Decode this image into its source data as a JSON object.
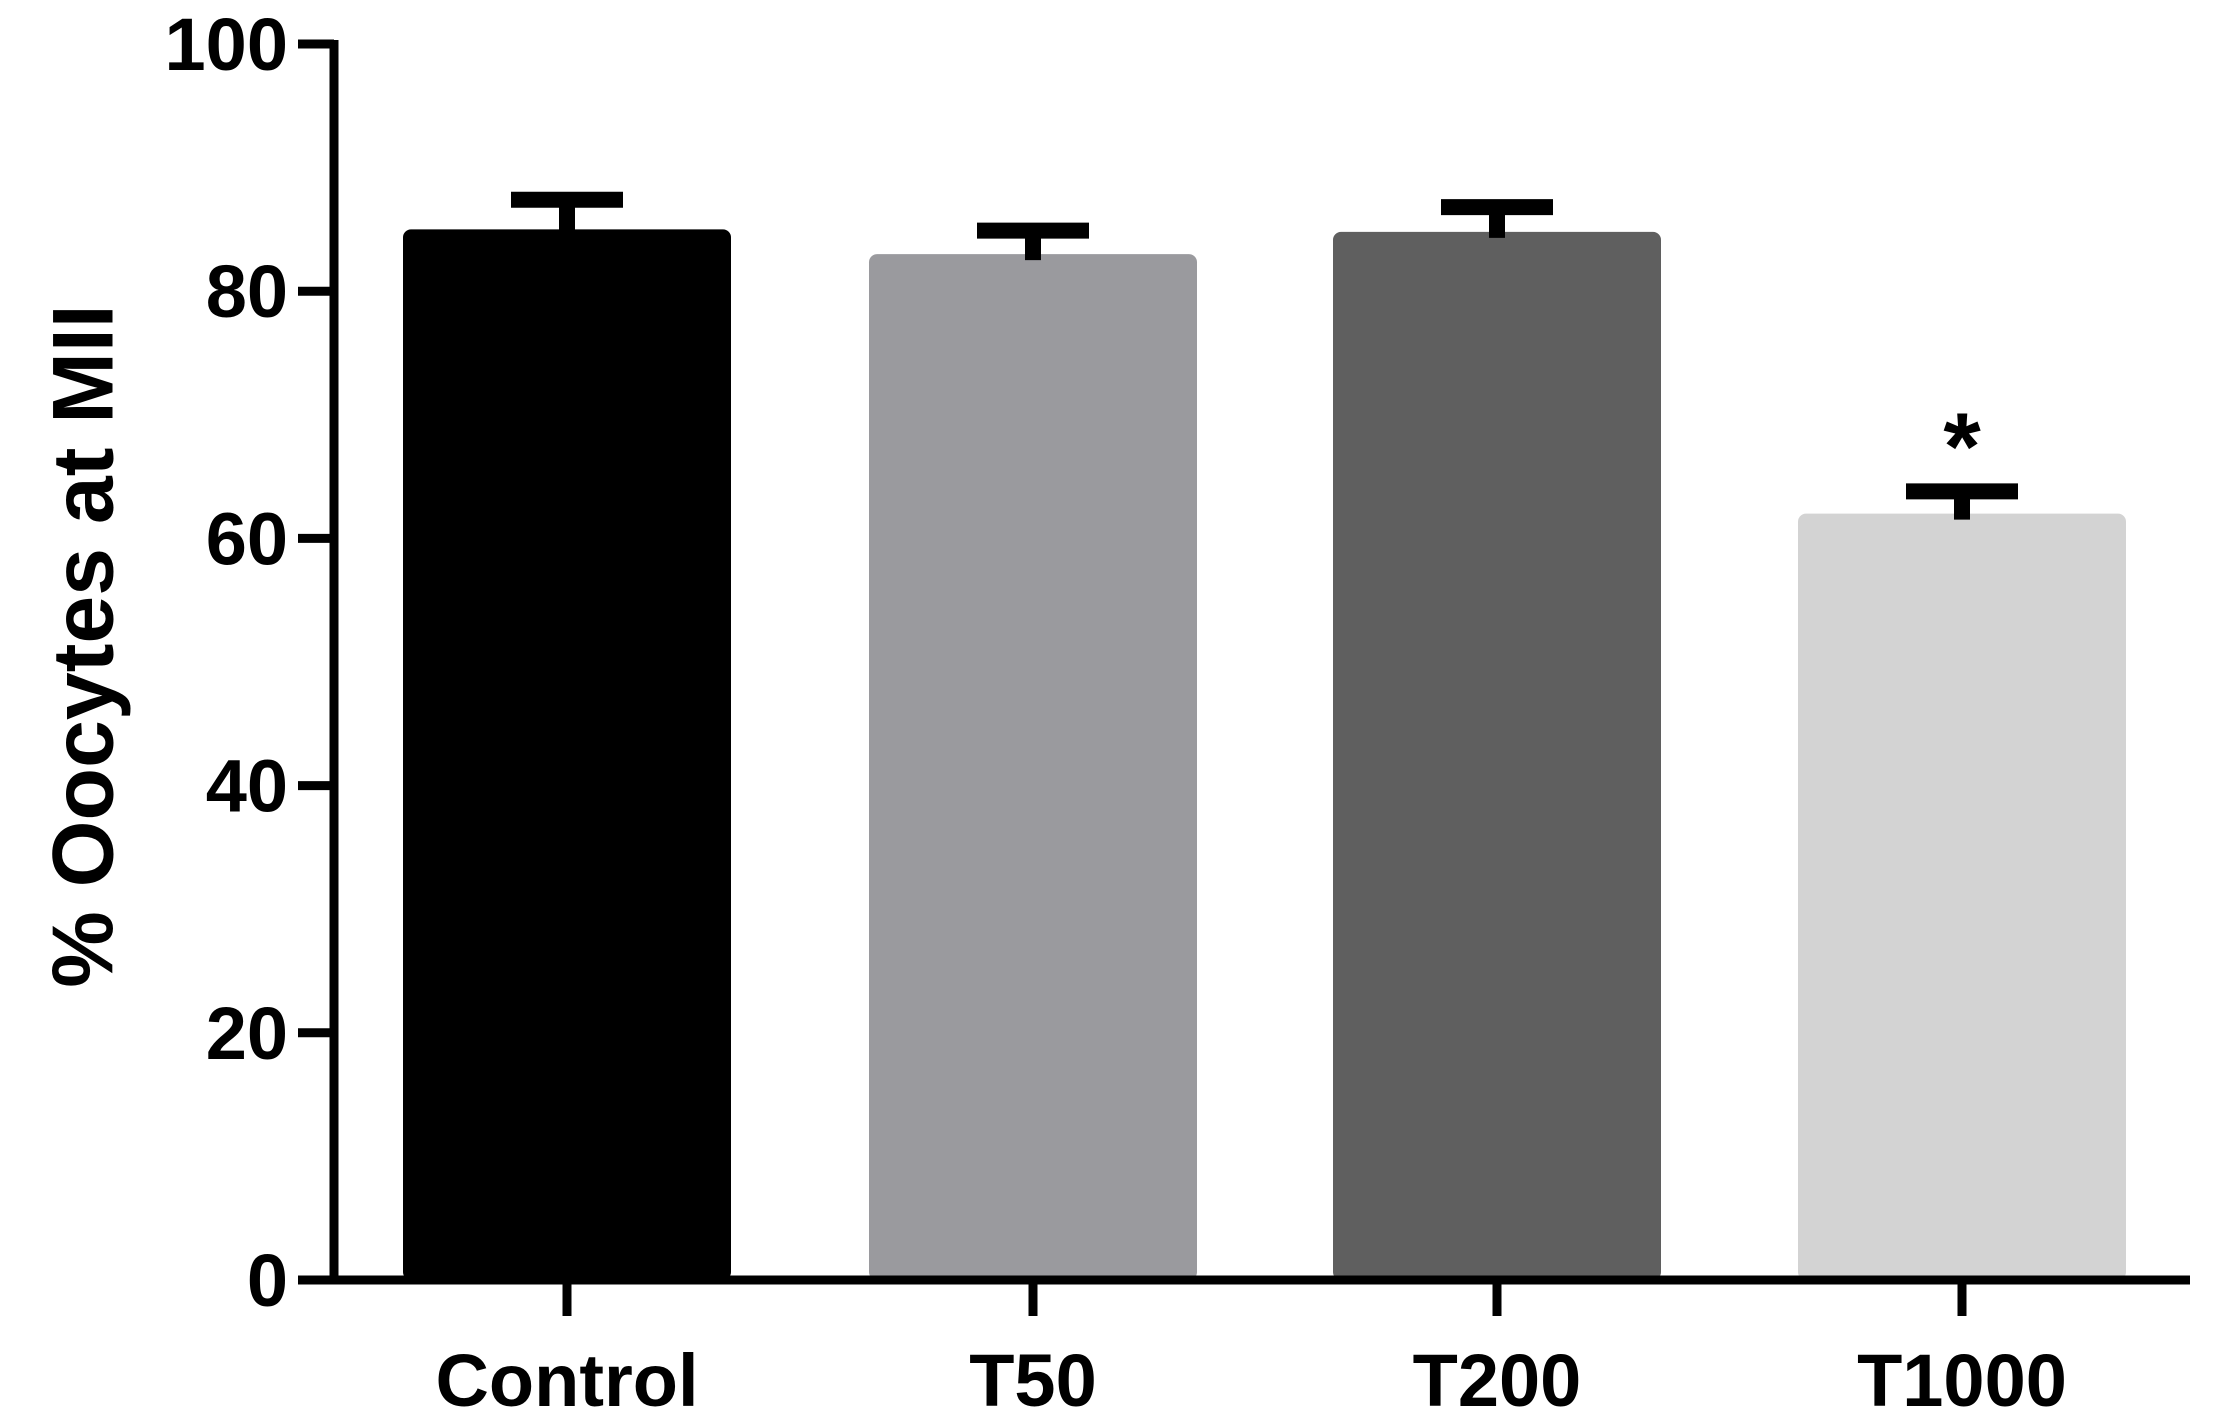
{
  "chart_data": {
    "type": "bar",
    "categories": [
      "Control",
      "T50",
      "T200",
      "T1000"
    ],
    "values": [
      85,
      83,
      84.8,
      62
    ],
    "errors": [
      2.4,
      1.9,
      2.0,
      1.8
    ],
    "colors": [
      "#000000",
      "#9a9a9e",
      "#5f5f5f",
      "#d3d3d3"
    ],
    "annotations": [
      "",
      "",
      "",
      "*"
    ],
    "title": "",
    "xlabel": "",
    "ylabel": "% Oocytes at MII",
    "ylim": [
      0,
      100
    ],
    "yticks": [
      0,
      20,
      40,
      60,
      80,
      100
    ],
    "grid": false
  }
}
